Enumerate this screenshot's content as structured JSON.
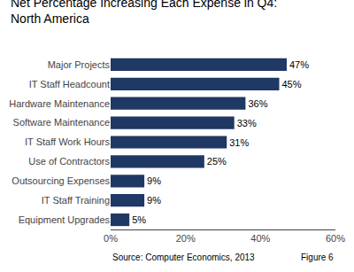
{
  "chart_data": {
    "type": "bar",
    "orientation": "horizontal",
    "title": "Net Percentage Increasing Each Expense in Q4:\nNorth America",
    "categories": [
      "Major Projects",
      "IT Staff Headcount",
      "Hardware Maintenance",
      "Software Maintenance",
      "IT Staff Work Hours",
      "Use of Contractors",
      "Outsourcing Expenses",
      "IT Staff Training",
      "Equipment Upgrades"
    ],
    "values": [
      47,
      45,
      36,
      33,
      31,
      25,
      9,
      9,
      5
    ],
    "value_labels": [
      "47%",
      "45%",
      "36%",
      "33%",
      "31%",
      "25%",
      "9%",
      "9%",
      "5%"
    ],
    "data_labels": true,
    "color": "#1F3864",
    "xlim": [
      0,
      60
    ],
    "xticks": [
      {
        "value": 0,
        "label": "0%"
      },
      {
        "value": 20,
        "label": "20%"
      },
      {
        "value": 40,
        "label": "40%"
      },
      {
        "value": 60,
        "label": "60%"
      }
    ],
    "grid": false,
    "annotations": [
      "Source: Computer Economics, 2013",
      "Figure 6"
    ]
  }
}
